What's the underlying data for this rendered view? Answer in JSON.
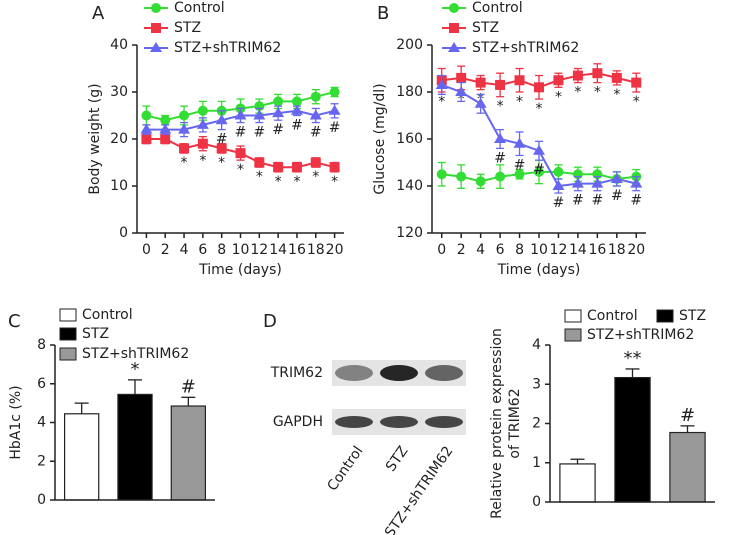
{
  "chart_data": [
    {
      "type": "line",
      "panel": "A",
      "xlabel": "Time (days)",
      "ylabel": "Body weight (g)",
      "x": [
        0,
        2,
        4,
        6,
        8,
        10,
        12,
        14,
        16,
        18,
        20
      ],
      "xlim": [
        -1,
        21
      ],
      "xticks": [
        0,
        2,
        4,
        6,
        8,
        10,
        12,
        14,
        16,
        18,
        20
      ],
      "ylim": [
        0,
        40
      ],
      "yticks": [
        0,
        10,
        20,
        30,
        40
      ],
      "series": [
        {
          "name": "Control",
          "color": "#33dd33",
          "marker": "circle",
          "values": [
            25,
            24,
            25,
            26,
            26,
            26.5,
            27,
            28,
            28,
            29,
            30
          ],
          "errors": [
            2,
            1,
            2,
            2,
            2,
            2,
            1.5,
            1.5,
            1.5,
            1.5,
            1
          ],
          "markers": [
            null,
            null,
            null,
            null,
            null,
            null,
            null,
            null,
            null,
            null,
            null
          ]
        },
        {
          "name": "STZ",
          "color": "#ee3344",
          "marker": "square",
          "values": [
            20,
            20,
            18,
            19,
            18,
            17,
            15,
            14,
            14,
            15,
            14
          ],
          "errors": [
            1,
            1,
            1,
            1.5,
            1,
            1.5,
            1,
            1,
            1,
            1,
            1
          ],
          "markers": [
            null,
            null,
            "*",
            "*",
            "*",
            "*",
            "*",
            "*",
            "*",
            "*",
            "*"
          ]
        },
        {
          "name": "STZ+shTRIM62",
          "color": "#6666ee",
          "marker": "triangle",
          "values": [
            22,
            22,
            22,
            23,
            24,
            25,
            25,
            25.5,
            26,
            25,
            26
          ],
          "errors": [
            1,
            1,
            1.5,
            1.5,
            2,
            1.5,
            1.5,
            1.5,
            1,
            1.5,
            1.5
          ],
          "markers": [
            null,
            null,
            null,
            null,
            "#",
            "#",
            "#",
            "#",
            "#",
            "#",
            "#"
          ]
        }
      ]
    },
    {
      "type": "line",
      "panel": "B",
      "xlabel": "Time (days)",
      "ylabel": "Glucose  (mg/dl)",
      "x": [
        0,
        2,
        4,
        6,
        8,
        10,
        12,
        14,
        16,
        18,
        20
      ],
      "xlim": [
        -1,
        21
      ],
      "xticks": [
        0,
        2,
        4,
        6,
        8,
        10,
        12,
        14,
        16,
        18,
        20
      ],
      "ylim": [
        120,
        200
      ],
      "yticks": [
        120,
        140,
        160,
        180,
        200
      ],
      "series": [
        {
          "name": "Control",
          "color": "#33dd33",
          "marker": "circle",
          "values": [
            145,
            144,
            142,
            144,
            145,
            146,
            146,
            145,
            145,
            143,
            144
          ],
          "errors": [
            5,
            5,
            3,
            5,
            2,
            5,
            3,
            3,
            3,
            3,
            3
          ],
          "markers": [
            null,
            null,
            null,
            null,
            null,
            null,
            null,
            null,
            null,
            null,
            null
          ]
        },
        {
          "name": "STZ",
          "color": "#ee3344",
          "marker": "square",
          "values": [
            185,
            186,
            184,
            183,
            185,
            182,
            185,
            187,
            188,
            186,
            184
          ],
          "errors": [
            5,
            5,
            3,
            5,
            5,
            5,
            3,
            3,
            4,
            3,
            4
          ],
          "markers": [
            "*",
            "*",
            "*",
            "*",
            "*",
            "*",
            "*",
            "*",
            "*",
            "*",
            "*"
          ]
        },
        {
          "name": "STZ+shTRIM62",
          "color": "#6666ee",
          "marker": "triangle",
          "values": [
            183,
            180,
            175,
            160,
            158,
            155,
            140,
            141,
            141,
            143,
            141
          ],
          "errors": [
            4,
            4,
            4,
            4,
            5,
            4,
            3,
            3,
            3,
            3,
            3
          ],
          "markers": [
            null,
            null,
            null,
            "#",
            "#",
            "#",
            "#",
            "#",
            "#",
            "#",
            "#"
          ]
        }
      ]
    },
    {
      "type": "bar",
      "panel": "C",
      "ylabel": "HbA1c (%)",
      "categories": [
        "Control",
        "STZ",
        "STZ+shTRIM62"
      ],
      "colors": [
        "#ffffff",
        "#000000",
        "#999999"
      ],
      "values": [
        4.45,
        5.45,
        4.85
      ],
      "errors": [
        0.55,
        0.75,
        0.45
      ],
      "annotations": [
        null,
        "*",
        "#"
      ],
      "ylim": [
        0,
        8
      ],
      "yticks": [
        0,
        2,
        4,
        6,
        8
      ]
    },
    {
      "type": "bar",
      "panel": "D",
      "ylabel": [
        "Relative protein expression",
        "of TRIM62"
      ],
      "blot_rows": [
        "TRIM62",
        "GAPDH"
      ],
      "categories": [
        "Control",
        "STZ",
        "STZ+shTRIM62"
      ],
      "colors": [
        "#ffffff",
        "#000000",
        "#999999"
      ],
      "values": [
        0.97,
        3.17,
        1.77
      ],
      "errors": [
        0.12,
        0.22,
        0.17
      ],
      "annotations": [
        null,
        "**",
        "#"
      ],
      "ylim": [
        0,
        4
      ],
      "yticks": [
        0,
        1,
        2,
        3,
        4
      ]
    }
  ]
}
